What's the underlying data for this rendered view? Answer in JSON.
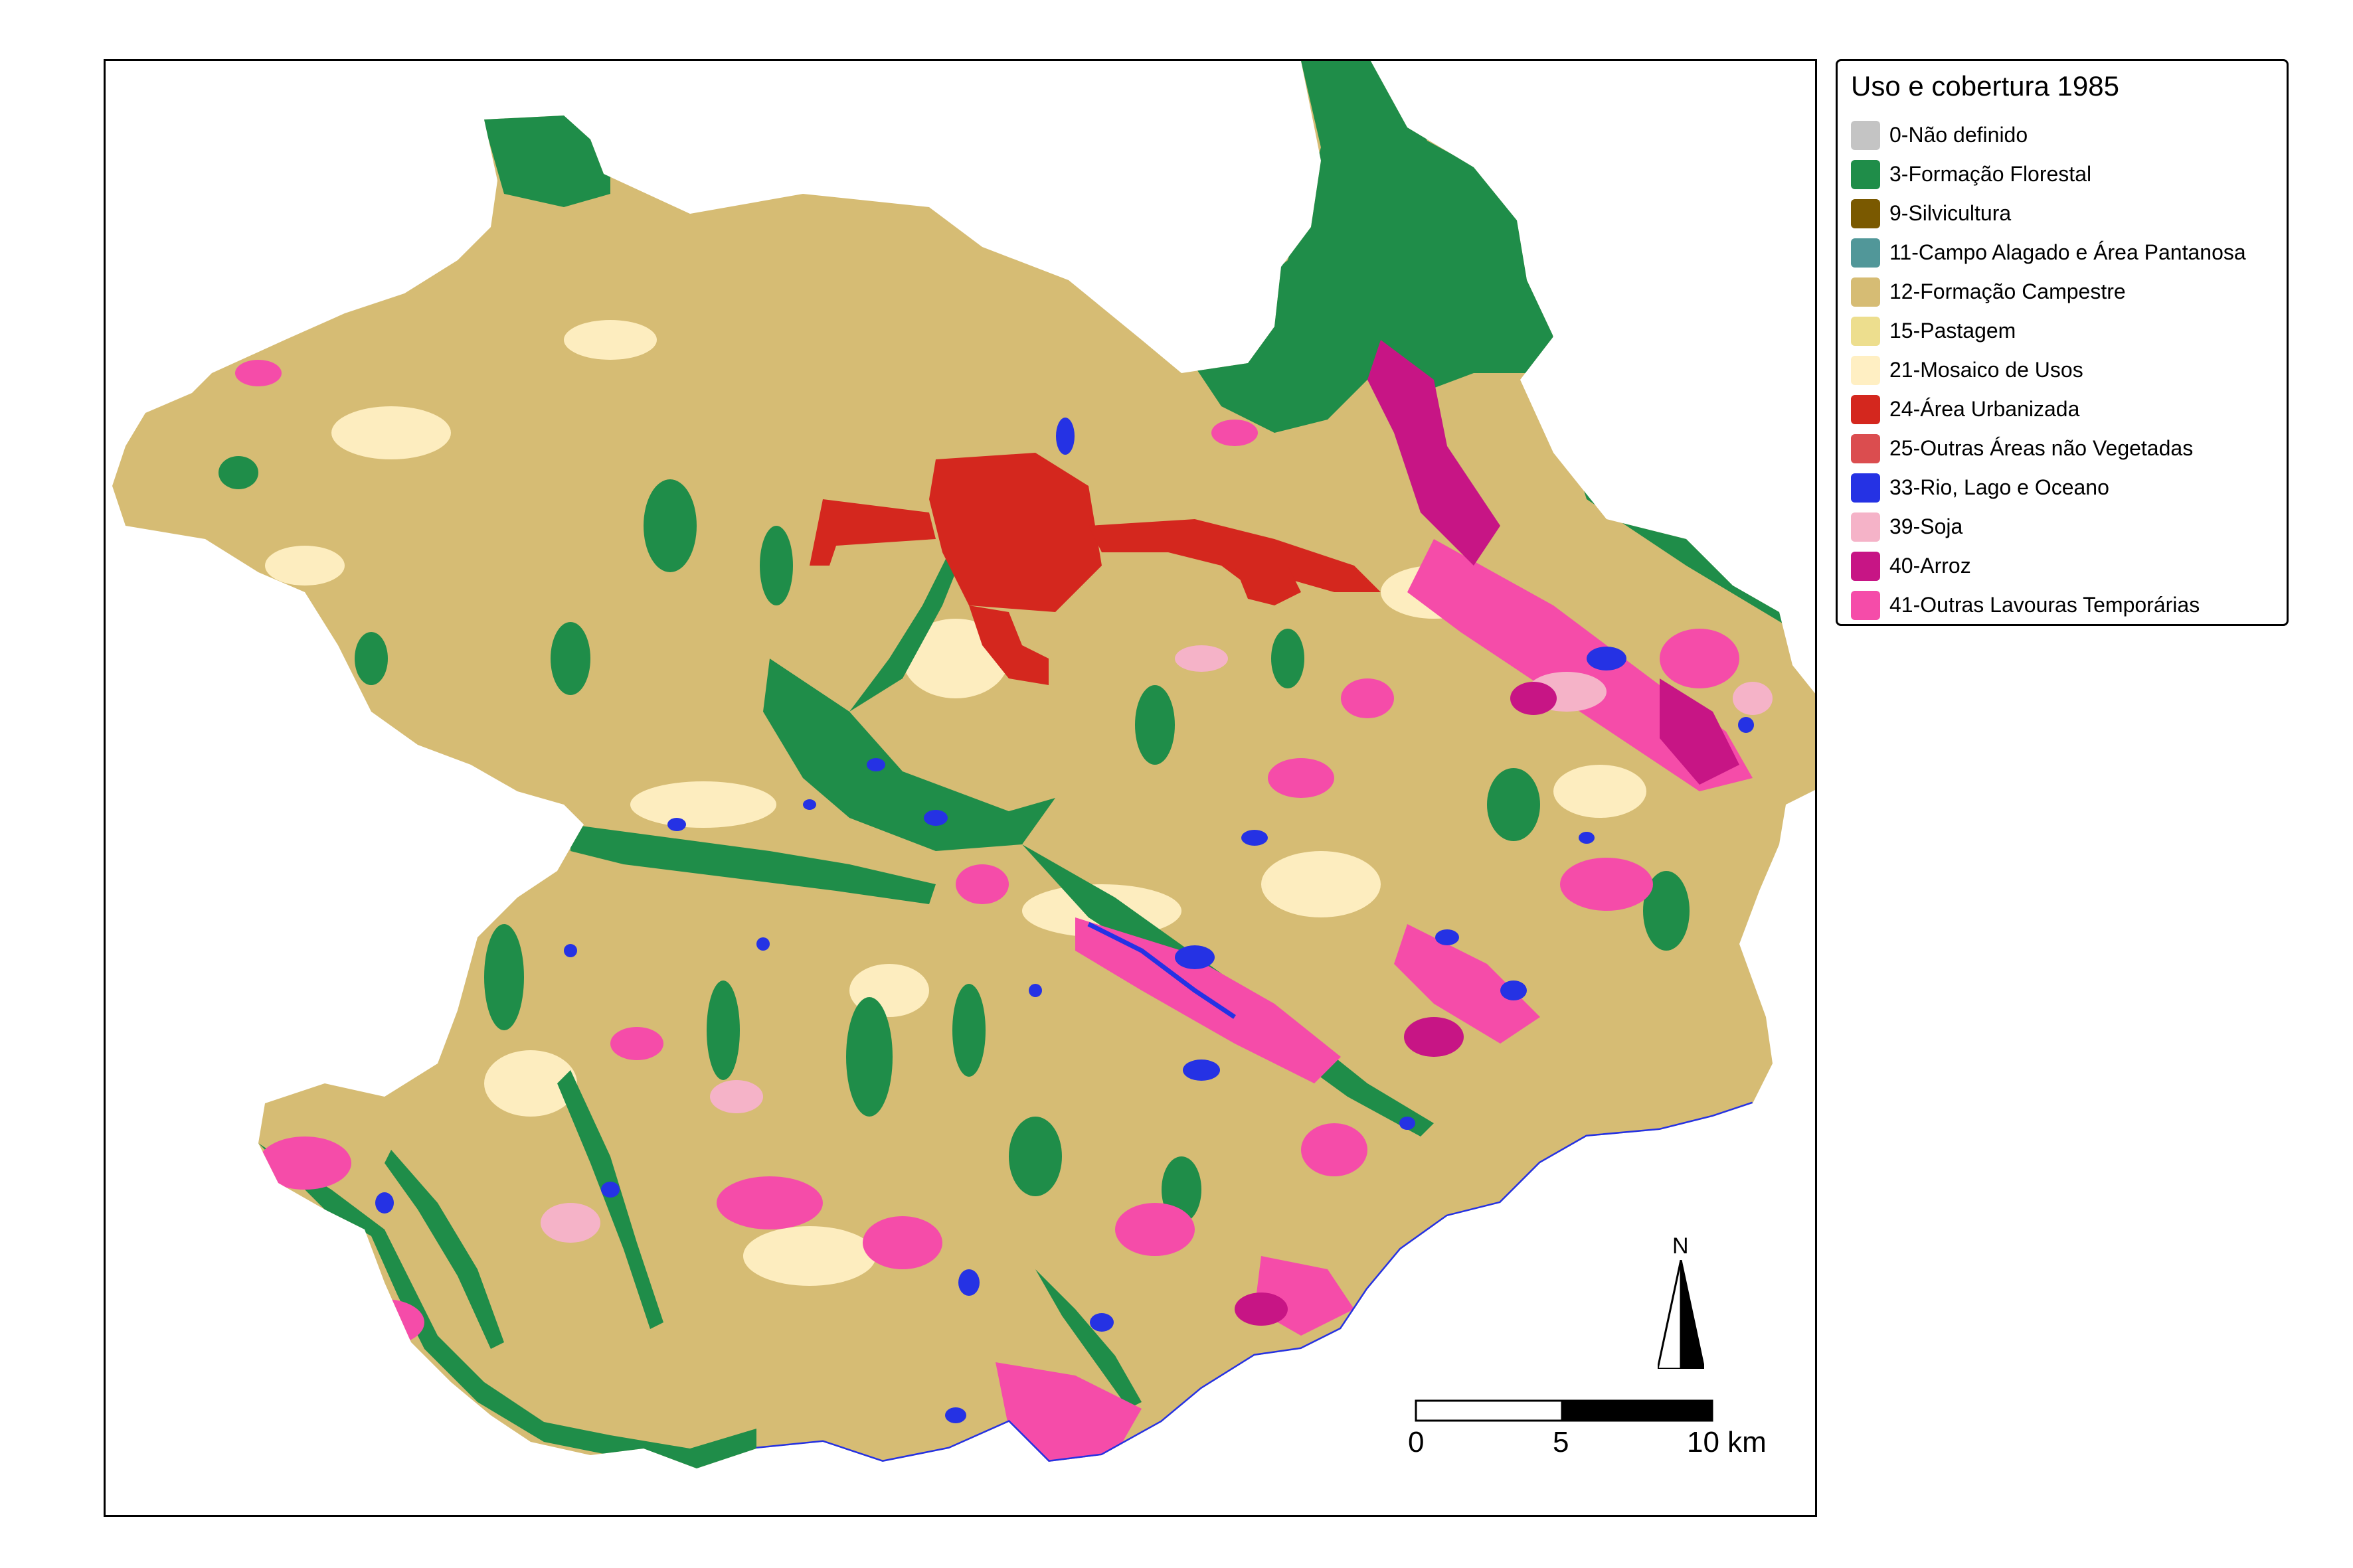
{
  "legend": {
    "title": "Uso e cobertura 1985",
    "items": [
      {
        "label": "0-Não definido",
        "color": "#c4c4c4"
      },
      {
        "label": "3-Formação Florestal",
        "color": "#1f8d49"
      },
      {
        "label": "9-Silvicultura",
        "color": "#7a5900"
      },
      {
        "label": "11-Campo Alagado e Área Pantanosa",
        "color": "#519799"
      },
      {
        "label": "12-Formação Campestre",
        "color": "#d6bc74"
      },
      {
        "label": "15-Pastagem",
        "color": "#edde8e"
      },
      {
        "label": "21-Mosaico de Usos",
        "color": "#ffefc3"
      },
      {
        "label": "24-Área Urbanizada",
        "color": "#d4271e"
      },
      {
        "label": "25-Outras Áreas não Vegetadas",
        "color": "#db4d4f"
      },
      {
        "label": "33-Rio, Lago e Oceano",
        "color": "#2532e4"
      },
      {
        "label": "39-Soja",
        "color": "#f5b3c8"
      },
      {
        "label": "40-Arroz",
        "color": "#c71585"
      },
      {
        "label": "41-Outras Lavouras Temporárias",
        "color": "#f54ca9"
      }
    ]
  },
  "north_arrow": {
    "label": "N"
  },
  "scale_bar": {
    "ticks": [
      "0",
      "5",
      "10 km"
    ]
  }
}
